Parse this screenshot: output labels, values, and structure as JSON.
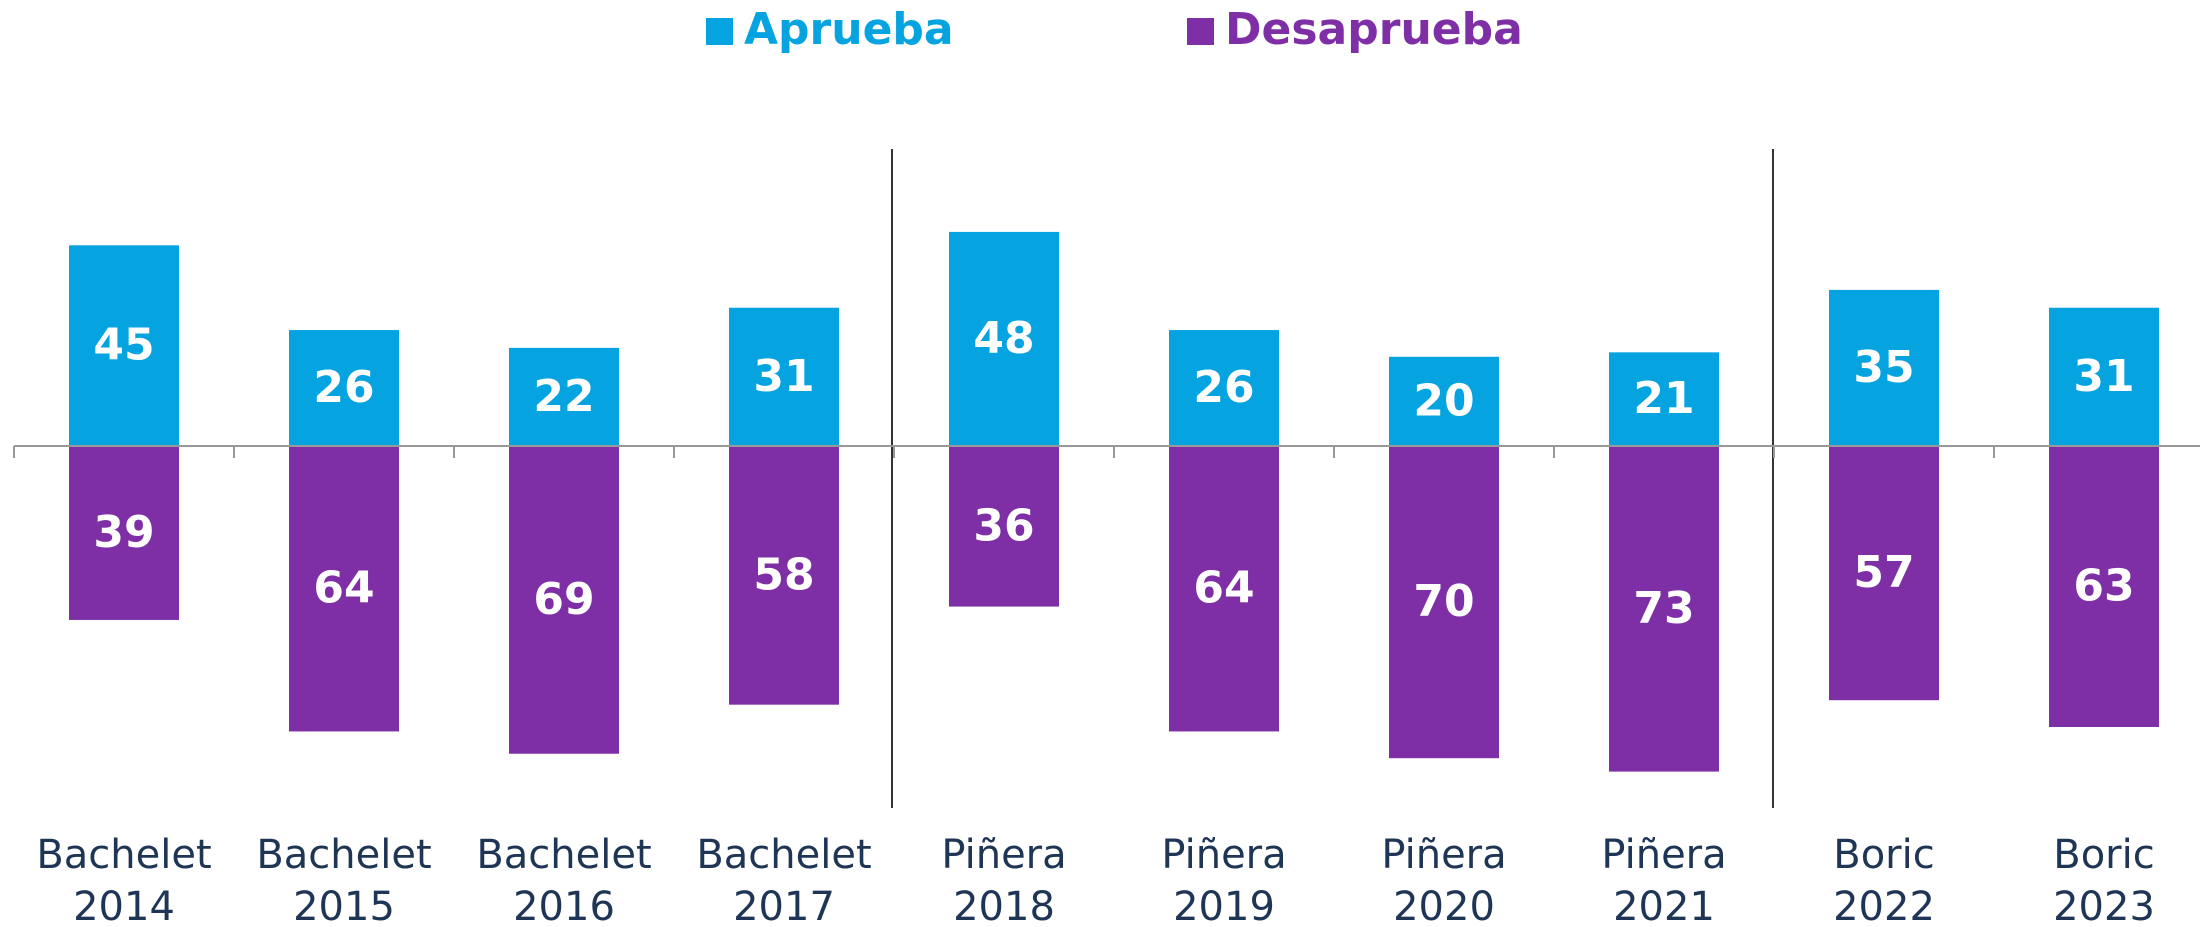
{
  "chart_data": {
    "type": "diverging-bar",
    "categories": [
      "Bachelet 2014",
      "Bachelet 2015",
      "Bachelet 2016",
      "Bachelet 2017",
      "Piñera 2018",
      "Piñera 2019",
      "Piñera 2020",
      "Piñera 2021",
      "Boric 2022",
      "Boric 2023"
    ],
    "series": [
      {
        "name": "Aprueba",
        "color": "#05a3e0",
        "values": [
          45,
          26,
          22,
          31,
          48,
          26,
          20,
          21,
          35,
          31
        ]
      },
      {
        "name": "Desaprueba",
        "color": "#7f2fa6",
        "values": [
          39,
          64,
          69,
          58,
          36,
          64,
          70,
          73,
          57,
          63
        ]
      }
    ],
    "legend": "top"
  }
}
